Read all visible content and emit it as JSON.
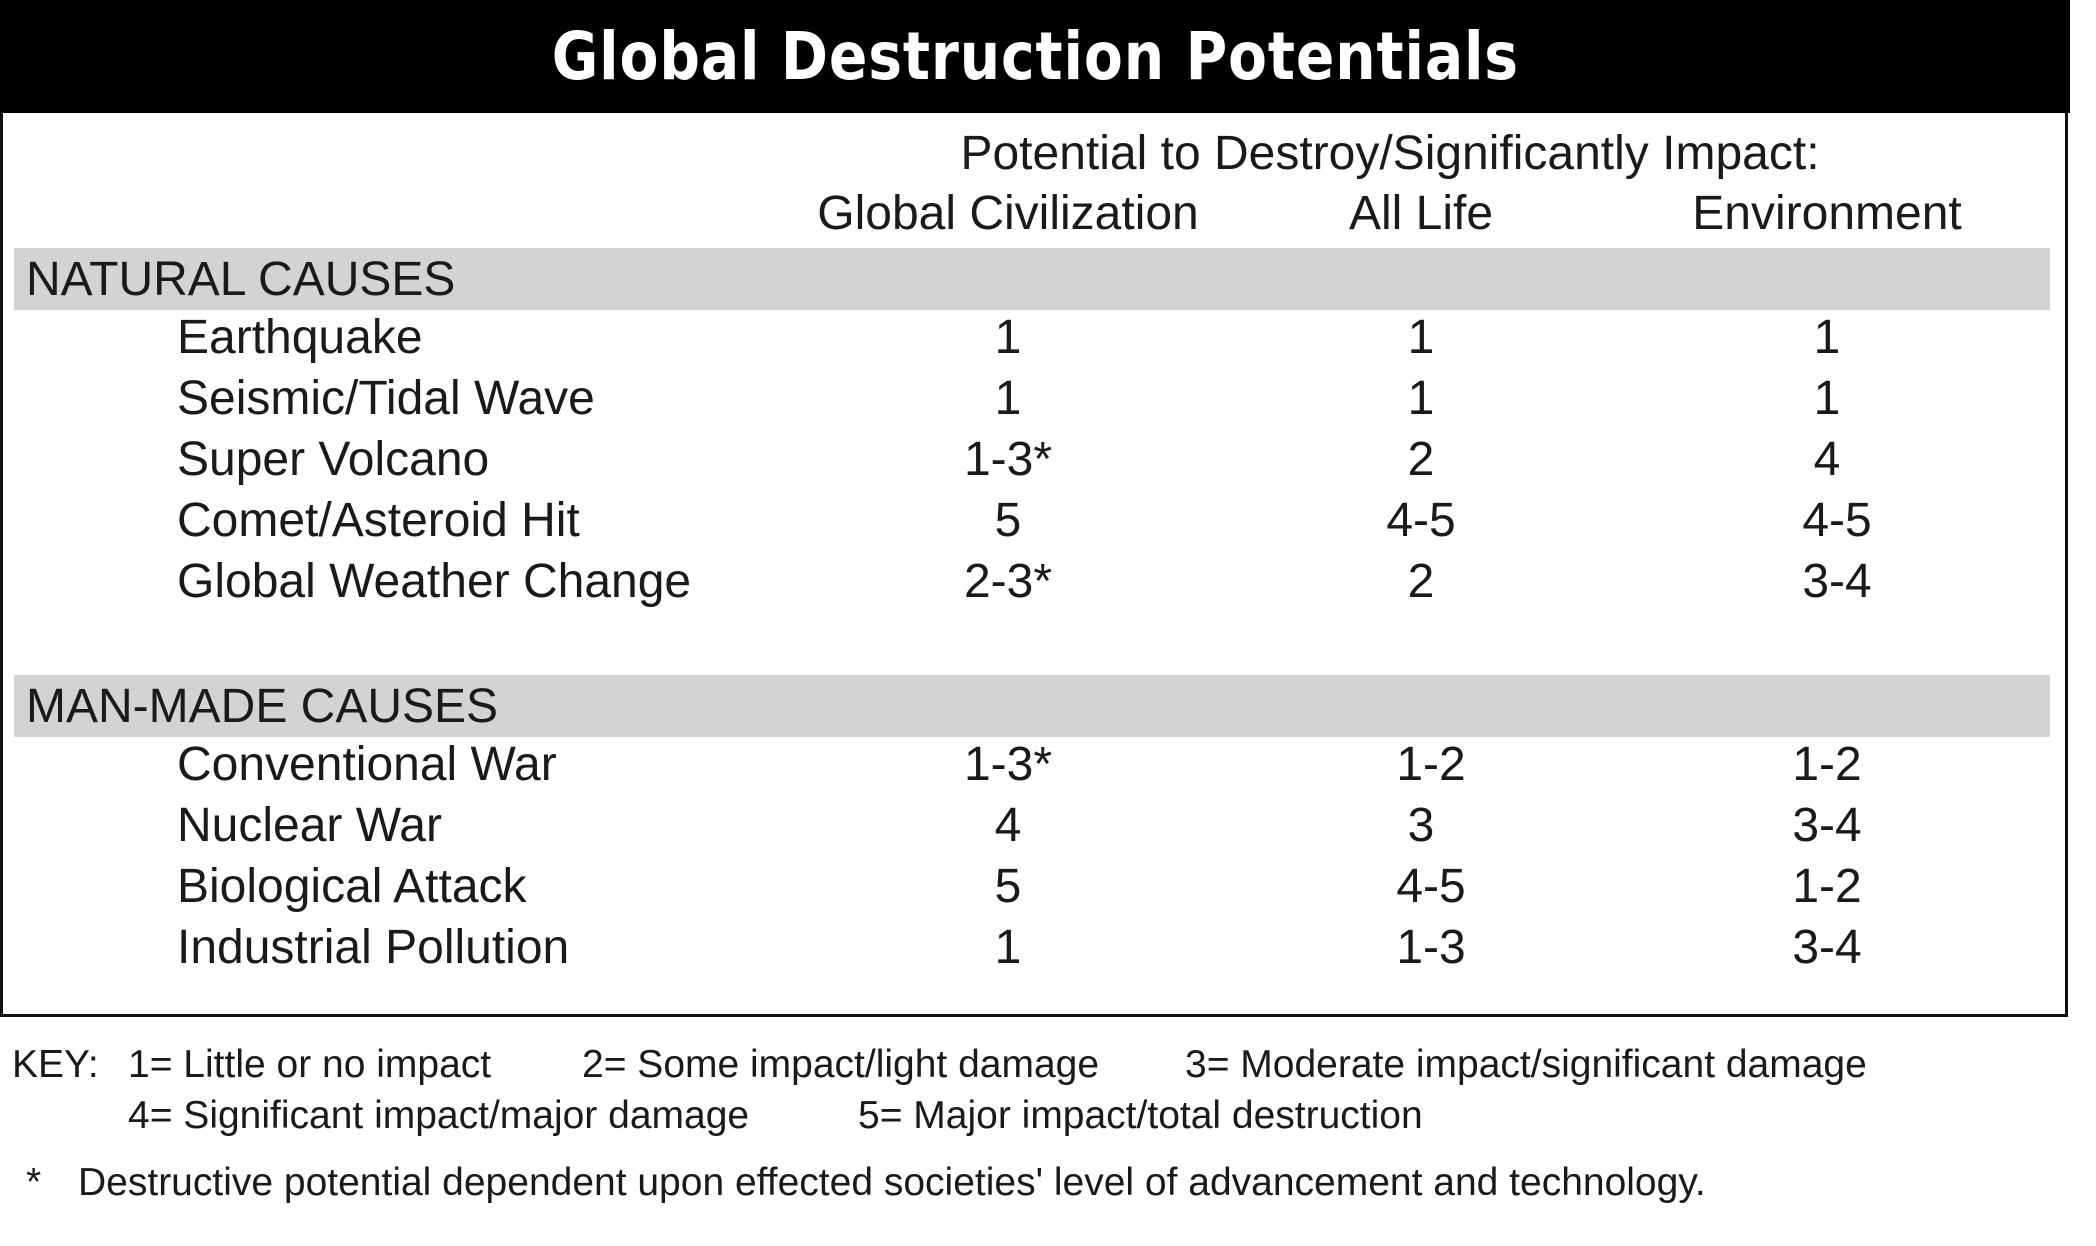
{
  "title": "Global Destruction Potentials",
  "header": {
    "main": "Potential to Destroy/Significantly Impact:",
    "columns": [
      "Global Civilization",
      "All Life",
      "Environment"
    ]
  },
  "sections": [
    {
      "name": "NATURAL CAUSES",
      "rows": [
        {
          "label": "Earthquake",
          "values": [
            "1",
            "1",
            "1"
          ]
        },
        {
          "label": "Seismic/Tidal Wave",
          "values": [
            "1",
            "1",
            "1"
          ]
        },
        {
          "label": "Super Volcano",
          "values": [
            "1-3*",
            "2",
            "4"
          ]
        },
        {
          "label": "Comet/Asteroid Hit",
          "values": [
            "5",
            "4-5",
            "4-5"
          ]
        },
        {
          "label": "Global Weather Change",
          "values": [
            "2-3*",
            "2",
            "3-4"
          ]
        }
      ]
    },
    {
      "name": "MAN-MADE CAUSES",
      "rows": [
        {
          "label": "Conventional War",
          "values": [
            "1-3*",
            "1-2",
            "1-2"
          ]
        },
        {
          "label": "Nuclear War",
          "values": [
            "4",
            "3",
            "3-4"
          ]
        },
        {
          "label": "Biological Attack",
          "values": [
            "5",
            "4-5",
            "1-2"
          ]
        },
        {
          "label": "Industrial Pollution",
          "values": [
            "1",
            "1-3",
            "3-4"
          ]
        }
      ]
    }
  ],
  "key": {
    "prefix": "KEY:",
    "items": [
      "1= Little or no impact",
      "2= Some impact/light damage",
      "3= Moderate impact/significant damage",
      "4= Significant impact/major damage",
      "5= Major impact/total destruction"
    ]
  },
  "footnote": {
    "mark": "*",
    "text": "Destructive potential dependent upon effected societies' level of advancement and technology."
  }
}
